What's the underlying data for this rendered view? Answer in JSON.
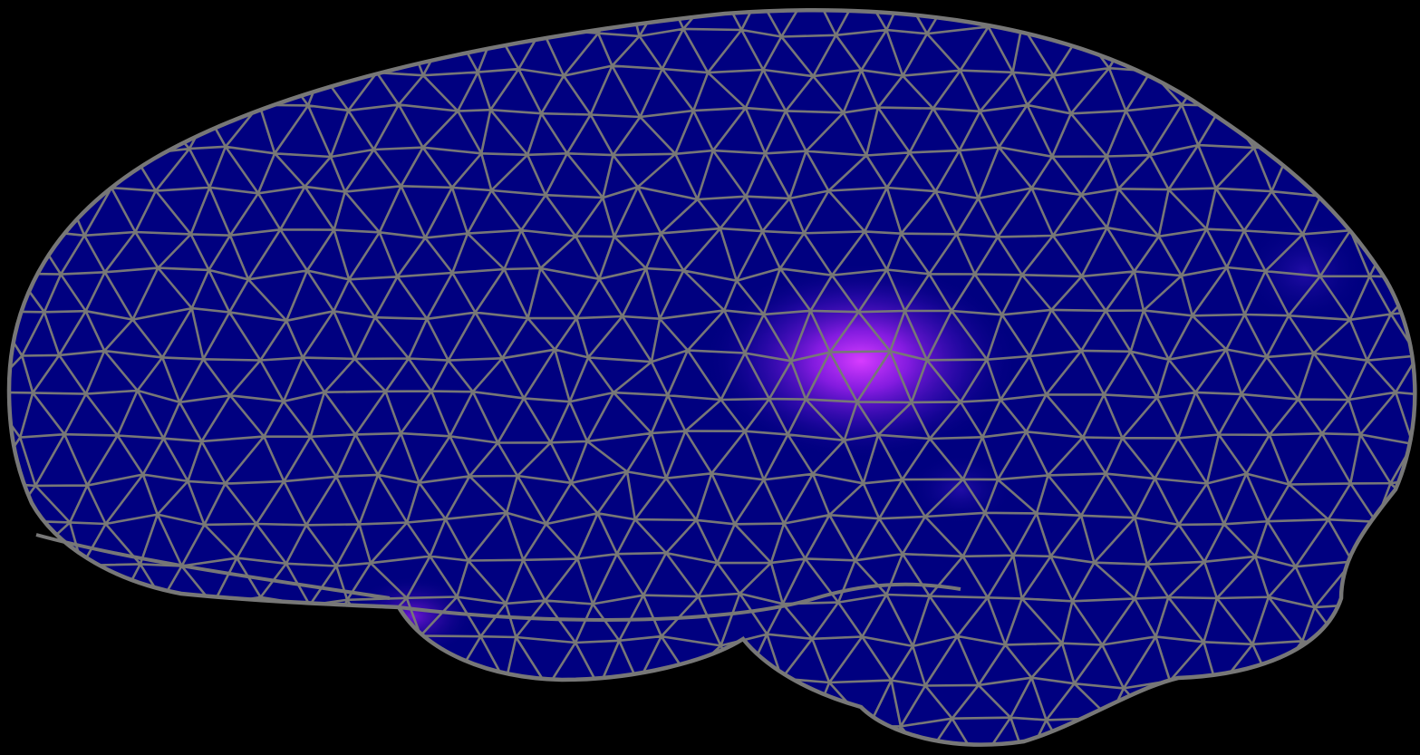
{
  "viewer": {
    "background_color": "#000000",
    "surface_color": "#000080",
    "mesh_line_color": "#777777",
    "highlight_color": "#cc22ff",
    "view": "lateral"
  },
  "activations": [
    {
      "region": "central",
      "intensity": 1.0
    },
    {
      "region": "temporal-pole",
      "intensity": 0.35
    },
    {
      "region": "occipital",
      "intensity": 0.12
    }
  ]
}
